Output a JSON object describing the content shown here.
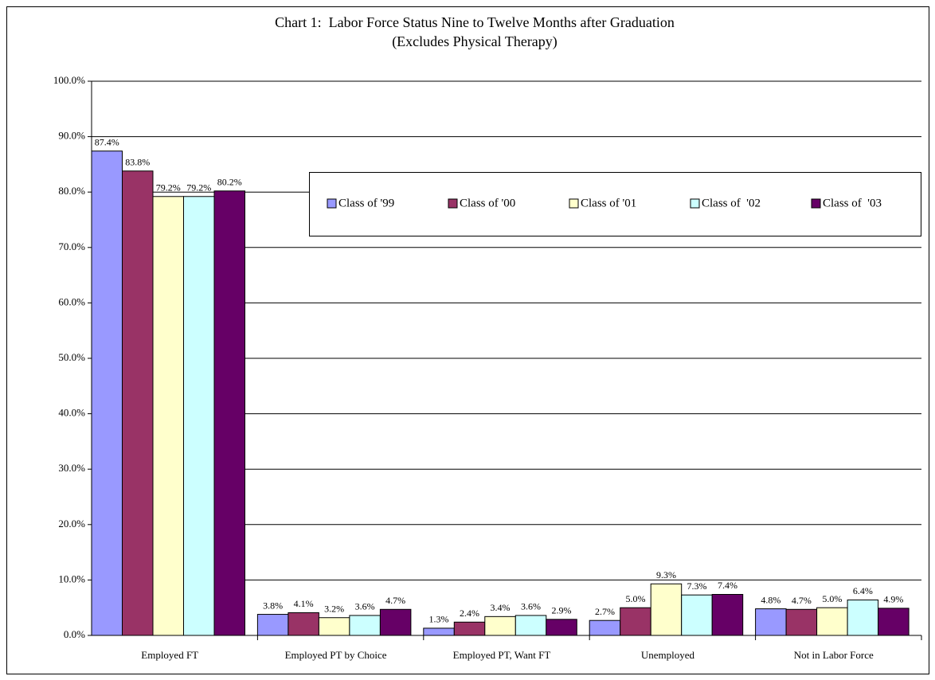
{
  "chart_data": {
    "type": "bar",
    "title": "Chart 1:  Labor Force Status Nine to Twelve Months after Graduation",
    "subtitle": "(Excludes Physical Therapy)",
    "categories": [
      "Employed FT",
      "Employed PT by Choice",
      "Employed PT, Want FT",
      "Unemployed",
      "Not in Labor Force"
    ],
    "series": [
      {
        "name": "Class of '99",
        "color": "#9999ff",
        "values": [
          87.4,
          3.8,
          1.3,
          2.7,
          4.8
        ],
        "value_labels": [
          "87.4%",
          "3.8%",
          "1.3%",
          "2.7%",
          "4.8%"
        ]
      },
      {
        "name": "Class of '00",
        "color": "#993366",
        "values": [
          83.8,
          4.1,
          2.4,
          5.0,
          4.7
        ],
        "value_labels": [
          "83.8%",
          "4.1%",
          "2.4%",
          "5.0%",
          "4.7%"
        ]
      },
      {
        "name": "Class of '01",
        "color": "#ffffcc",
        "values": [
          79.2,
          3.2,
          3.4,
          9.3,
          5.0
        ],
        "value_labels": [
          "79.2%",
          "3.2%",
          "3.4%",
          "9.3%",
          "5.0%"
        ]
      },
      {
        "name": "Class of  '02",
        "color": "#ccffff",
        "values": [
          79.2,
          3.6,
          3.6,
          7.3,
          6.4
        ],
        "value_labels": [
          "79.2%",
          "3.6%",
          "3.6%",
          "7.3%",
          "6.4%"
        ]
      },
      {
        "name": "Class of  '03",
        "color": "#660066",
        "values": [
          80.2,
          4.7,
          2.9,
          7.4,
          4.9
        ],
        "value_labels": [
          "80.2%",
          "4.7%",
          "2.9%",
          "7.4%",
          "4.9%"
        ]
      }
    ],
    "ylim": [
      0,
      100
    ],
    "yticks": [
      {
        "value": 0,
        "label": "0.0%"
      },
      {
        "value": 10,
        "label": "10.0%"
      },
      {
        "value": 20,
        "label": "20.0%"
      },
      {
        "value": 30,
        "label": "30.0%"
      },
      {
        "value": 40,
        "label": "40.0%"
      },
      {
        "value": 50,
        "label": "50.0%"
      },
      {
        "value": 60,
        "label": "60.0%"
      },
      {
        "value": 70,
        "label": "70.0%"
      },
      {
        "value": 80,
        "label": "80.0%"
      },
      {
        "value": 90,
        "label": "90.0%"
      },
      {
        "value": 100,
        "label": "100.0%"
      }
    ],
    "grid": true
  }
}
